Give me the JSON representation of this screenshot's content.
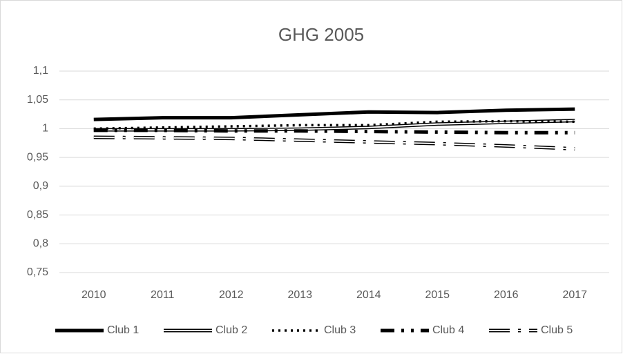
{
  "chart_data": {
    "type": "line",
    "title": "GHG 2005",
    "categories": [
      "2010",
      "2011",
      "2012",
      "2013",
      "2014",
      "2015",
      "2016",
      "2017"
    ],
    "series": [
      {
        "name": "Club 1",
        "color": "#000000",
        "line_style": "solid",
        "values": [
          1.016,
          1.019,
          1.019,
          1.024,
          1.029,
          1.028,
          1.032,
          1.034
        ]
      },
      {
        "name": "Club 2",
        "color": "#000000",
        "line_style": "double",
        "values": [
          0.998,
          0.998,
          0.998,
          0.999,
          1.002,
          1.008,
          1.011,
          1.014
        ]
      },
      {
        "name": "Club 3",
        "color": "#000000",
        "line_style": "dotted",
        "values": [
          1.0,
          1.002,
          1.004,
          1.006,
          1.006,
          1.012,
          1.013,
          1.012
        ]
      },
      {
        "name": "Club 4",
        "color": "#000000",
        "line_style": "dash-dot-dot",
        "values": [
          0.997,
          0.997,
          0.996,
          0.996,
          0.995,
          0.994,
          0.993,
          0.993
        ]
      },
      {
        "name": "Club 5",
        "color": "#000000",
        "line_style": "double-dash-dot",
        "values": [
          0.985,
          0.984,
          0.983,
          0.98,
          0.977,
          0.974,
          0.97,
          0.965
        ]
      }
    ],
    "ylim": [
      0.75,
      1.1
    ],
    "yticks": [
      {
        "value": 0.75,
        "label": "0,75"
      },
      {
        "value": 0.8,
        "label": "0,8"
      },
      {
        "value": 0.85,
        "label": "0,85"
      },
      {
        "value": 0.9,
        "label": "0,9"
      },
      {
        "value": 0.95,
        "label": "0,95"
      },
      1,
      {
        "value": 1.05,
        "label": "1,05"
      },
      {
        "value": 1.1,
        "label": "1,1"
      }
    ],
    "grid": true,
    "legend": "bottom"
  }
}
